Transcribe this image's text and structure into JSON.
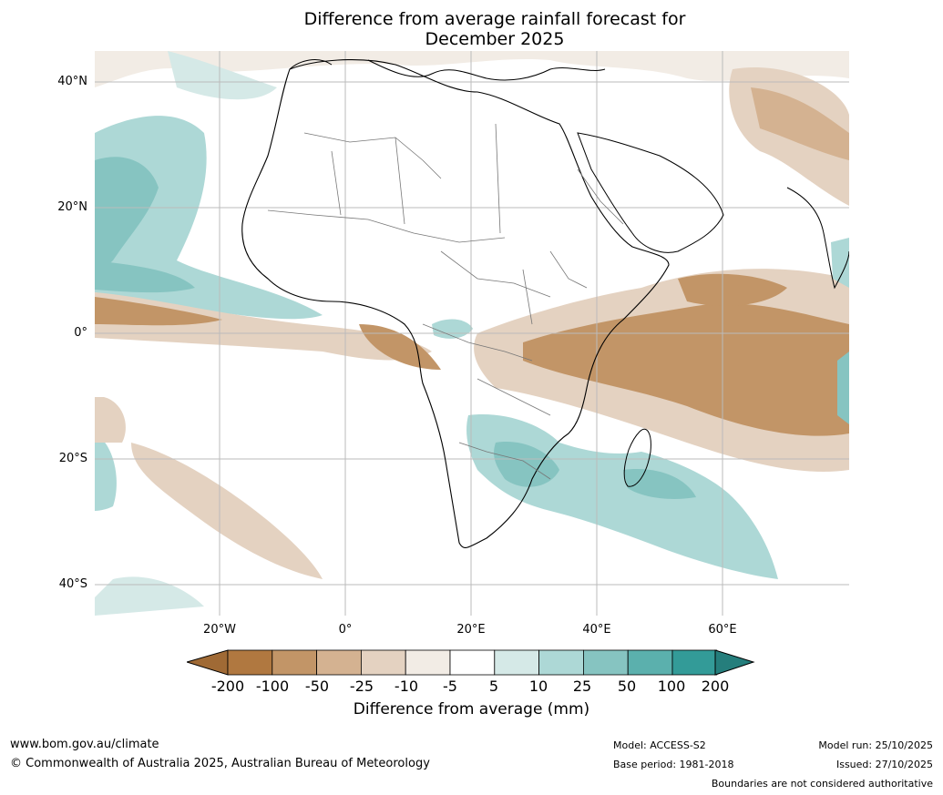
{
  "title_line1": "Difference from average rainfall forecast for",
  "title_line2": "December 2025",
  "lat_labels": [
    "40°N",
    "20°N",
    "0°",
    "20°S",
    "40°S"
  ],
  "lon_labels": [
    "20°W",
    "0°",
    "20°E",
    "40°E",
    "60°E"
  ],
  "colorbar": {
    "labels": [
      "-200",
      "-100",
      "-50",
      "-25",
      "-10",
      "-5",
      "5",
      "10",
      "25",
      "50",
      "100",
      "200"
    ],
    "colors": [
      "#a06a35",
      "#b07840",
      "#c29567",
      "#d4b291",
      "#e4d2c1",
      "#f2ece5",
      "#ffffff",
      "#d5e9e7",
      "#add8d6",
      "#86c4c1",
      "#5bb0ad",
      "#339b98",
      "#257e7c"
    ],
    "title": "Difference from average (mm)"
  },
  "footer": {
    "website": "www.bom.gov.au/climate",
    "copyright": "© Commonwealth of Australia 2025, Australian Bureau of Meteorology",
    "model": "Model: ACCESS-S2",
    "base_period": "Base period: 1981-2018",
    "model_run": "Model run: 25/10/2025",
    "issued": "Issued: 27/10/2025",
    "disclaimer": "Boundaries are not considered authoritative"
  }
}
